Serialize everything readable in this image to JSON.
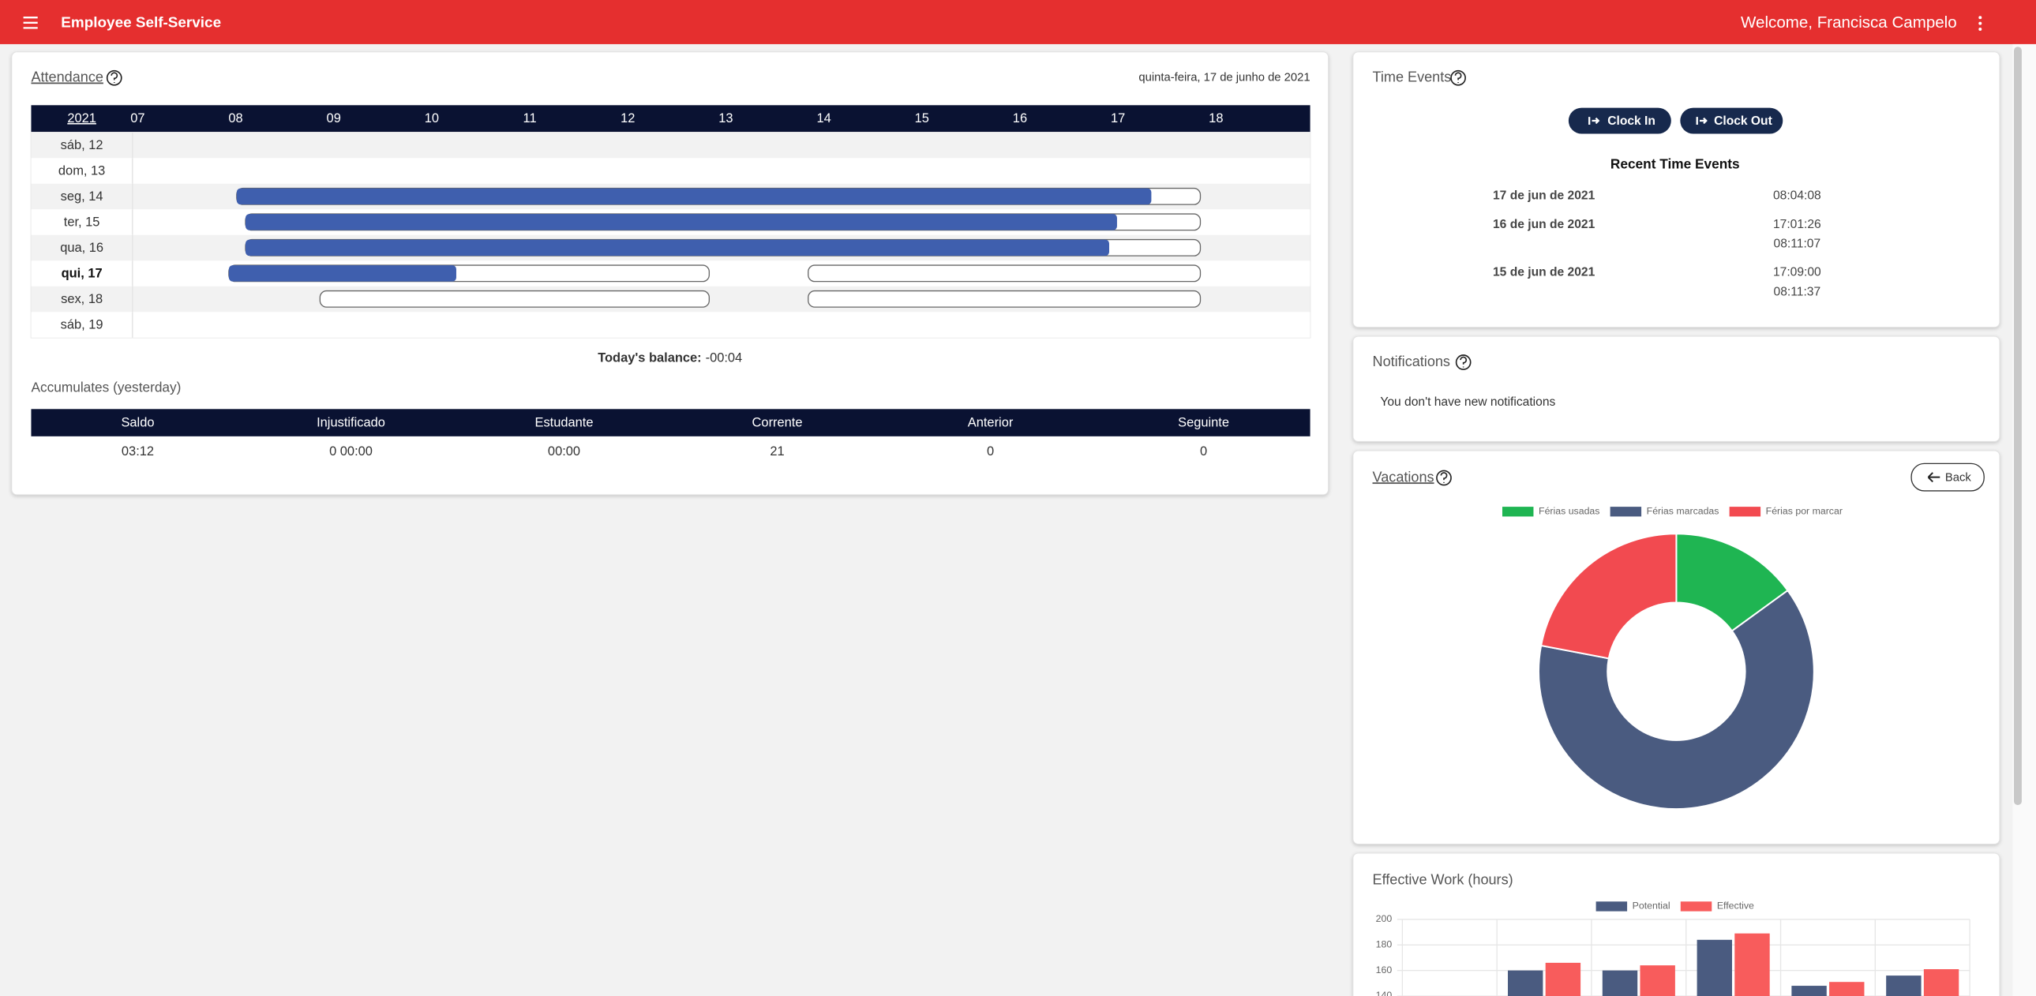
{
  "header": {
    "app_title": "Employee Self-Service",
    "welcome": "Welcome, Francisca Campelo"
  },
  "attendance": {
    "title": "Attendance",
    "date": "quinta-feira, 17 de junho de 2021",
    "year": "2021",
    "xlim": [
      7,
      19
    ],
    "hour_ticks": [
      {
        "value": 7,
        "label": "07"
      },
      {
        "value": 8,
        "label": "08"
      },
      {
        "value": 9,
        "label": "09"
      },
      10,
      11,
      12,
      13,
      14,
      15,
      16,
      17,
      18
    ],
    "days": [
      {
        "label": "sáb, 12"
      },
      {
        "label": "dom, 13"
      },
      {
        "label": "seg, 14",
        "bars": [
          {
            "start": 8.05,
            "end": 17.88,
            "worked_until": 17.38
          }
        ]
      },
      {
        "label": "ter, 15",
        "bars": [
          {
            "start": 8.14,
            "end": 17.88,
            "worked_until": 17.03
          }
        ]
      },
      {
        "label": "qua, 16",
        "bars": [
          {
            "start": 8.14,
            "end": 17.88,
            "worked_until": 16.95
          }
        ]
      },
      {
        "label": "qui, 17",
        "current": true,
        "bars": [
          {
            "start": 7.97,
            "end": 12.87,
            "worked_until": 10.29
          },
          {
            "start": 13.88,
            "end": 17.88
          }
        ]
      },
      {
        "label": "sex, 18",
        "bars": [
          {
            "start": 8.9,
            "end": 12.87
          },
          {
            "start": 13.88,
            "end": 17.88
          }
        ]
      },
      {
        "label": "sáb, 19"
      }
    ],
    "balance_label": "Today's balance:",
    "balance": "-00:04",
    "accumulates_title": "Accumulates (yesterday)",
    "accumulates": {
      "columns": [
        "Saldo",
        "Injustificado",
        "Estudante",
        "Corrente",
        "Anterior",
        "Seguinte"
      ],
      "values": [
        "03:12",
        "0 00:00",
        "00:00",
        "21",
        "0",
        "0"
      ]
    }
  },
  "time_events": {
    "title": "Time Events",
    "clock_in": "Clock In",
    "clock_out": "Clock Out",
    "recent_title": "Recent Time Events",
    "events": [
      {
        "date": "17 de jun de 2021",
        "times": [
          "08:04:08"
        ]
      },
      {
        "date": "16 de jun de 2021",
        "times": [
          "17:01:26",
          "08:11:07"
        ]
      },
      {
        "date": "15 de jun de 2021",
        "times": [
          "17:09:00",
          "08:11:37"
        ]
      }
    ]
  },
  "notifications": {
    "title": "Notifications",
    "message": "You don't have new notifications"
  },
  "vacations": {
    "back_button": "Back"
  },
  "chart_data": [
    {
      "type": "pie",
      "title": "Vacations",
      "donut": true,
      "categories": [
        "Férias usadas",
        "Férias marcadas",
        "Férias por marcar"
      ],
      "values": [
        15,
        63,
        22
      ],
      "colors": [
        "#1fb552",
        "#4a5b80",
        "#f24a50"
      ]
    },
    {
      "type": "bar",
      "title": "Effective Work (hours)",
      "categories": [
        null,
        null,
        null,
        null,
        null,
        null
      ],
      "series": [
        {
          "name": "Potential",
          "color": "#4a5b80",
          "values": [
            null,
            160,
            160,
            184,
            148,
            156
          ]
        },
        {
          "name": "Effective",
          "color": "#f85c5c",
          "values": [
            null,
            166,
            164,
            189,
            151,
            161
          ]
        }
      ],
      "ylim": [
        140,
        200
      ],
      "yticks": [
        140,
        160,
        180,
        200
      ],
      "grid": true
    }
  ]
}
